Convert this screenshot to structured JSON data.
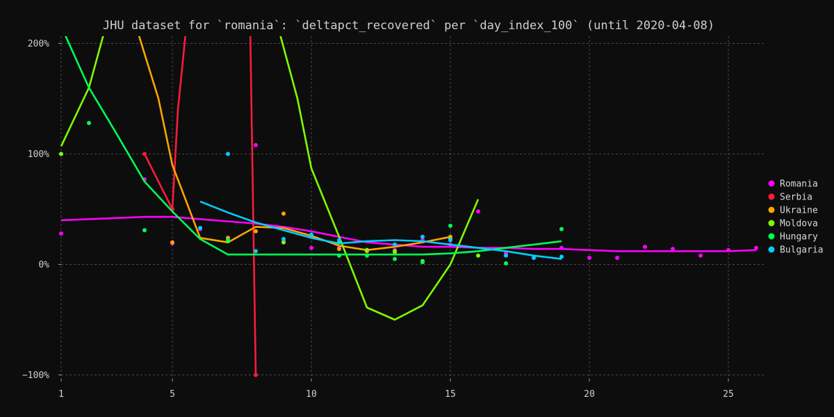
{
  "chart_data": {
    "type": "line",
    "title": "JHU dataset for `romania`: `deltapct_recovered` per `day_index_100` (until 2020-04-08)",
    "xlabel": "",
    "ylabel": "",
    "xlim": [
      0.5,
      26.3
    ],
    "ylim": [
      -105,
      210
    ],
    "x_ticks": [
      {
        "value": 1,
        "label": "1"
      },
      {
        "value": 5,
        "label": "5"
      },
      {
        "value": 10,
        "label": "10"
      },
      {
        "value": 15,
        "label": "15"
      },
      {
        "value": 20,
        "label": "20"
      },
      {
        "value": 25,
        "label": "25"
      }
    ],
    "y_ticks": [
      {
        "value": -100,
        "label": "−100%"
      },
      {
        "value": 0,
        "label": "0%"
      },
      {
        "value": 100,
        "label": "100%"
      },
      {
        "value": 200,
        "label": "200%"
      }
    ],
    "grid": true,
    "legend_position": "right",
    "series": [
      {
        "name": "Romania",
        "color": "#ff00ff",
        "points": [
          [
            1,
            28
          ],
          [
            4,
            77
          ],
          [
            5,
            19
          ],
          [
            6,
            32
          ],
          [
            8,
            108
          ],
          [
            9,
            21
          ],
          [
            10,
            15
          ],
          [
            11,
            15
          ],
          [
            13,
            13
          ],
          [
            14,
            22
          ],
          [
            15,
            18
          ],
          [
            16,
            48
          ],
          [
            17,
            10
          ],
          [
            18,
            6
          ],
          [
            19,
            15
          ],
          [
            20,
            6
          ],
          [
            21,
            6
          ],
          [
            22,
            16
          ],
          [
            23,
            14
          ],
          [
            24,
            8
          ],
          [
            25,
            13
          ],
          [
            26,
            15
          ]
        ],
        "trend": [
          [
            1,
            40
          ],
          [
            2,
            41
          ],
          [
            3,
            42
          ],
          [
            4,
            43
          ],
          [
            5,
            43
          ],
          [
            6,
            41
          ],
          [
            7,
            39
          ],
          [
            8,
            37
          ],
          [
            9,
            34
          ],
          [
            10,
            30
          ],
          [
            11,
            25
          ],
          [
            12,
            20
          ],
          [
            13,
            18
          ],
          [
            14,
            16
          ],
          [
            15,
            16
          ],
          [
            16,
            15
          ],
          [
            17,
            15
          ],
          [
            18,
            14
          ],
          [
            19,
            14
          ],
          [
            20,
            13
          ],
          [
            21,
            12
          ],
          [
            22,
            12
          ],
          [
            23,
            12
          ],
          [
            24,
            12
          ],
          [
            25,
            12
          ],
          [
            26,
            13
          ]
        ]
      },
      {
        "name": "Serbia",
        "color": "#ff1a3c",
        "points": [
          [
            4,
            100
          ],
          [
            5,
            50
          ],
          [
            8,
            -100
          ]
        ],
        "trend": [
          [
            4,
            100
          ],
          [
            5,
            50
          ],
          [
            5.2,
            140
          ],
          [
            5.5,
            215
          ],
          [
            7.8,
            215
          ],
          [
            8,
            -100
          ]
        ]
      },
      {
        "name": "Ukraine",
        "color": "#ffa500",
        "points": [
          [
            5,
            20
          ],
          [
            7,
            24
          ],
          [
            8,
            30
          ],
          [
            9,
            46
          ],
          [
            10,
            26
          ],
          [
            11,
            14
          ],
          [
            12,
            12
          ],
          [
            13,
            11
          ],
          [
            15,
            25
          ]
        ],
        "trend": [
          [
            3.7,
            215
          ],
          [
            4.5,
            150
          ],
          [
            5,
            90
          ],
          [
            6,
            24
          ],
          [
            7,
            20
          ],
          [
            8,
            34
          ],
          [
            9,
            33
          ],
          [
            10,
            26
          ],
          [
            11,
            17
          ],
          [
            12,
            13
          ],
          [
            13,
            16
          ],
          [
            14,
            20
          ],
          [
            15,
            25
          ]
        ]
      },
      {
        "name": "Moldova",
        "color": "#7fff00",
        "points": [
          [
            1,
            100
          ],
          [
            7,
            21
          ],
          [
            9,
            20
          ],
          [
            11,
            20
          ],
          [
            12,
            13
          ],
          [
            13,
            12
          ],
          [
            14,
            3
          ],
          [
            15,
            23
          ],
          [
            16,
            8
          ]
        ],
        "trend": [
          [
            1,
            107
          ],
          [
            2,
            160
          ],
          [
            2.6,
            215
          ],
          [
            8.8,
            215
          ],
          [
            9.5,
            150
          ],
          [
            10,
            87
          ],
          [
            11,
            25
          ],
          [
            12,
            -39
          ],
          [
            13,
            -50
          ],
          [
            14,
            -37
          ],
          [
            15,
            0
          ],
          [
            16,
            59
          ]
        ]
      },
      {
        "name": "Hungary",
        "color": "#00ff55",
        "points": [
          [
            2,
            128
          ],
          [
            4,
            31
          ],
          [
            7,
            22
          ],
          [
            11,
            8
          ],
          [
            12,
            8
          ],
          [
            13,
            5
          ],
          [
            14,
            2
          ],
          [
            15,
            35
          ],
          [
            17,
            1
          ],
          [
            19,
            32
          ]
        ],
        "trend": [
          [
            1.1,
            210
          ],
          [
            2,
            160
          ],
          [
            3,
            118
          ],
          [
            4,
            75
          ],
          [
            5,
            48
          ],
          [
            6,
            23
          ],
          [
            7,
            9
          ],
          [
            8,
            9
          ],
          [
            10,
            9
          ],
          [
            12,
            9
          ],
          [
            14,
            9
          ],
          [
            15,
            10
          ],
          [
            16,
            12
          ],
          [
            17,
            15
          ],
          [
            18,
            18
          ],
          [
            19,
            21
          ]
        ]
      },
      {
        "name": "Bulgaria",
        "color": "#00cfff",
        "points": [
          [
            6,
            33
          ],
          [
            7,
            100
          ],
          [
            8,
            12
          ],
          [
            9,
            23
          ],
          [
            10,
            27
          ],
          [
            11,
            22
          ],
          [
            13,
            18
          ],
          [
            14,
            25
          ],
          [
            15,
            22
          ],
          [
            17,
            8
          ],
          [
            18,
            6
          ],
          [
            19,
            7
          ]
        ],
        "trend": [
          [
            6,
            57
          ],
          [
            7,
            47
          ],
          [
            8,
            38
          ],
          [
            9,
            31
          ],
          [
            10,
            24
          ],
          [
            11,
            19
          ],
          [
            12,
            21
          ],
          [
            13,
            22
          ],
          [
            14,
            21
          ],
          [
            15,
            18
          ],
          [
            16,
            15
          ],
          [
            17,
            12
          ],
          [
            18,
            8
          ],
          [
            19,
            5
          ]
        ]
      }
    ]
  }
}
